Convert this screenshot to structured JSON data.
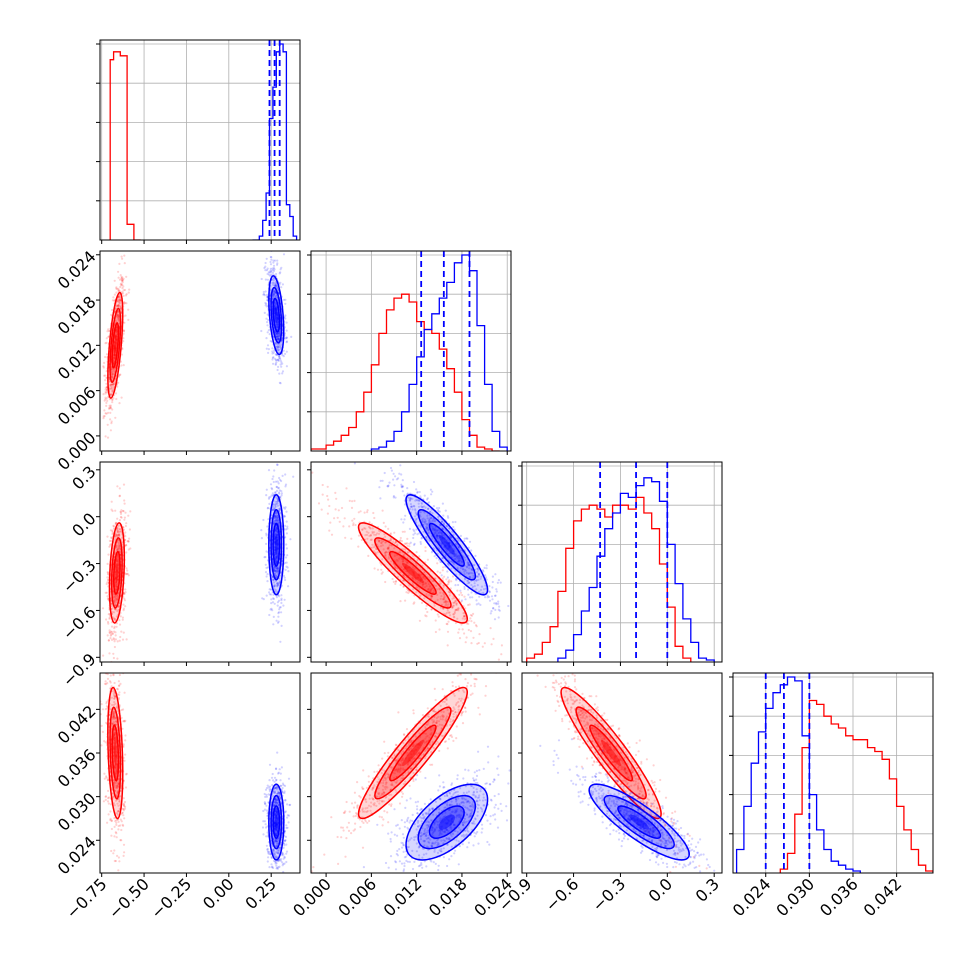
{
  "chart_data": {
    "type": "corner",
    "series_colors": [
      "#ff0000",
      "#0000ff"
    ],
    "parameters": [
      {
        "id": "p1",
        "range": [
          -0.76,
          0.42
        ],
        "ticks": [
          {
            "v": -0.75,
            "label": "−0.75"
          },
          {
            "v": -0.5,
            "label": "−0.50"
          },
          {
            "v": -0.25,
            "label": "−0.25"
          },
          {
            "v": 0.0,
            "label": "0.00"
          },
          {
            "v": 0.25,
            "label": "0.25"
          }
        ]
      },
      {
        "id": "p2",
        "range": [
          -0.002,
          0.0245
        ],
        "ticks": [
          {
            "v": 0.0,
            "label": "0.000"
          },
          {
            "v": 0.006,
            "label": "0.006"
          },
          {
            "v": 0.012,
            "label": "0.012"
          },
          {
            "v": 0.018,
            "label": "0.018"
          },
          {
            "v": 0.024,
            "label": "0.024"
          }
        ]
      },
      {
        "id": "p3",
        "range": [
          -0.93,
          0.35
        ],
        "ticks": [
          {
            "v": -0.9,
            "label": "−0.9"
          },
          {
            "v": -0.6,
            "label": "−0.6"
          },
          {
            "v": -0.3,
            "label": "−0.3"
          },
          {
            "v": 0.0,
            "label": "0.0"
          },
          {
            "v": 0.3,
            "label": "0.3"
          }
        ]
      },
      {
        "id": "p4",
        "range": [
          0.0195,
          0.047
        ],
        "ticks": [
          {
            "v": 0.024,
            "label": "0.024"
          },
          {
            "v": 0.03,
            "label": "0.030"
          },
          {
            "v": 0.036,
            "label": "0.036"
          },
          {
            "v": 0.042,
            "label": "0.042"
          }
        ]
      }
    ],
    "histograms": [
      {
        "param": 0,
        "ymax": 1.0,
        "series": [
          {
            "color": "#ff0000",
            "edges": [
              -0.7,
              -0.68,
              -0.64,
              -0.6,
              -0.56,
              -0.52
            ],
            "counts": [
              0.92,
              0.96,
              0.94,
              0.08,
              0.0
            ]
          },
          {
            "color": "#0000ff",
            "edges": [
              0.14,
              0.18,
              0.2,
              0.22,
              0.24,
              0.26,
              0.28,
              0.3,
              0.32,
              0.34,
              0.36,
              0.38,
              0.4
            ],
            "counts": [
              0.0,
              0.02,
              0.1,
              0.24,
              0.62,
              0.78,
              0.96,
              1.0,
              0.96,
              0.18,
              0.12,
              0.02
            ]
          }
        ],
        "quantiles": [
          0.24,
          0.27,
          0.3
        ]
      },
      {
        "param": 1,
        "ymax": 1.0,
        "series": [
          {
            "color": "#ff0000",
            "edges": [
              -0.002,
              0.0,
              0.001,
              0.002,
              0.003,
              0.004,
              0.005,
              0.006,
              0.007,
              0.008,
              0.009,
              0.01,
              0.011,
              0.012,
              0.013,
              0.014,
              0.015,
              0.016,
              0.017,
              0.018,
              0.019,
              0.02,
              0.021,
              0.022,
              0.023
            ],
            "counts": [
              0.01,
              0.03,
              0.05,
              0.08,
              0.12,
              0.2,
              0.3,
              0.44,
              0.6,
              0.72,
              0.78,
              0.8,
              0.76,
              0.66,
              0.62,
              0.6,
              0.52,
              0.42,
              0.3,
              0.16,
              0.08,
              0.02,
              0.01,
              0.0
            ]
          },
          {
            "color": "#0000ff",
            "edges": [
              0.006,
              0.007,
              0.008,
              0.009,
              0.01,
              0.011,
              0.012,
              0.013,
              0.014,
              0.015,
              0.016,
              0.017,
              0.018,
              0.019,
              0.02,
              0.021,
              0.022,
              0.023,
              0.024
            ],
            "counts": [
              0.01,
              0.02,
              0.05,
              0.1,
              0.2,
              0.34,
              0.48,
              0.62,
              0.7,
              0.78,
              0.86,
              0.96,
              1.0,
              0.92,
              0.64,
              0.34,
              0.1,
              0.02
            ]
          }
        ],
        "quantiles": [
          0.0126,
          0.0156,
          0.019
        ]
      },
      {
        "param": 2,
        "ymax": 1.0,
        "series": [
          {
            "color": "#ff0000",
            "edges": [
              -0.9,
              -0.85,
              -0.8,
              -0.75,
              -0.7,
              -0.65,
              -0.6,
              -0.55,
              -0.5,
              -0.45,
              -0.4,
              -0.35,
              -0.3,
              -0.25,
              -0.2,
              -0.15,
              -0.1,
              -0.05,
              0.0,
              0.05,
              0.1,
              0.15
            ],
            "counts": [
              0.02,
              0.04,
              0.1,
              0.18,
              0.36,
              0.58,
              0.72,
              0.78,
              0.8,
              0.78,
              0.74,
              0.8,
              0.8,
              0.78,
              0.84,
              0.76,
              0.68,
              0.5,
              0.28,
              0.08,
              0.02
            ]
          },
          {
            "color": "#0000ff",
            "edges": [
              -0.7,
              -0.65,
              -0.6,
              -0.55,
              -0.5,
              -0.45,
              -0.4,
              -0.35,
              -0.3,
              -0.25,
              -0.2,
              -0.15,
              -0.1,
              -0.05,
              0.0,
              0.05,
              0.1,
              0.15,
              0.2,
              0.25,
              0.3
            ],
            "counts": [
              0.02,
              0.06,
              0.14,
              0.26,
              0.38,
              0.54,
              0.68,
              0.76,
              0.86,
              0.84,
              0.9,
              0.94,
              0.92,
              0.82,
              0.6,
              0.4,
              0.22,
              0.1,
              0.02,
              0.01
            ]
          }
        ],
        "quantiles": [
          -0.43,
          -0.2,
          0.0
        ]
      },
      {
        "param": 3,
        "ymax": 1.0,
        "series": [
          {
            "color": "#0000ff",
            "edges": [
              0.02,
              0.021,
              0.022,
              0.023,
              0.024,
              0.025,
              0.026,
              0.027,
              0.028,
              0.029,
              0.03,
              0.031,
              0.032,
              0.033,
              0.034,
              0.035,
              0.036,
              0.037
            ],
            "counts": [
              0.12,
              0.34,
              0.56,
              0.72,
              0.84,
              0.92,
              0.96,
              1.0,
              0.98,
              0.7,
              0.4,
              0.22,
              0.12,
              0.06,
              0.04,
              0.02,
              0.01
            ]
          },
          {
            "color": "#ff0000",
            "edges": [
              0.026,
              0.027,
              0.028,
              0.029,
              0.03,
              0.031,
              0.032,
              0.033,
              0.034,
              0.035,
              0.036,
              0.037,
              0.038,
              0.039,
              0.04,
              0.041,
              0.042,
              0.043,
              0.044,
              0.045,
              0.046,
              0.047
            ],
            "counts": [
              0.02,
              0.1,
              0.3,
              0.64,
              0.88,
              0.86,
              0.8,
              0.76,
              0.74,
              0.7,
              0.68,
              0.68,
              0.64,
              0.62,
              0.58,
              0.48,
              0.34,
              0.22,
              0.12,
              0.04,
              0.01
            ]
          }
        ],
        "quantiles": [
          0.024,
          0.0265,
          0.03
        ]
      }
    ],
    "scatter_panels": [
      {
        "x": 0,
        "y": 1,
        "clusters": [
          {
            "color": "#ff0000",
            "mean": [
              -0.67,
              0.012
            ],
            "sd": [
              0.022,
              0.0035
            ],
            "rho": 0.6
          },
          {
            "color": "#0000ff",
            "mean": [
              0.28,
              0.016
            ],
            "sd": [
              0.022,
              0.0026
            ],
            "rho": -0.4
          }
        ]
      },
      {
        "x": 0,
        "y": 2,
        "clusters": [
          {
            "color": "#ff0000",
            "mean": [
              -0.66,
              -0.36
            ],
            "sd": [
              0.022,
              0.16
            ],
            "rho": 0.3
          },
          {
            "color": "#0000ff",
            "mean": [
              0.28,
              -0.18
            ],
            "sd": [
              0.022,
              0.16
            ],
            "rho": 0.0
          }
        ]
      },
      {
        "x": 1,
        "y": 2,
        "clusters": [
          {
            "color": "#ff0000",
            "mean": [
              0.0115,
              -0.36
            ],
            "sd": [
              0.0036,
              0.16
            ],
            "rho": -0.92
          },
          {
            "color": "#0000ff",
            "mean": [
              0.016,
              -0.18
            ],
            "sd": [
              0.0027,
              0.16
            ],
            "rho": -0.9
          }
        ]
      },
      {
        "x": 0,
        "y": 3,
        "clusters": [
          {
            "color": "#ff0000",
            "mean": [
              -0.67,
              0.036
            ],
            "sd": [
              0.022,
              0.0045
            ],
            "rho": -0.3
          },
          {
            "color": "#0000ff",
            "mean": [
              0.28,
              0.0265
            ],
            "sd": [
              0.022,
              0.0026
            ],
            "rho": 0.0
          }
        ]
      },
      {
        "x": 1,
        "y": 3,
        "clusters": [
          {
            "color": "#ff0000",
            "mean": [
              0.0115,
              0.036
            ],
            "sd": [
              0.0036,
              0.0045
            ],
            "rho": 0.93
          },
          {
            "color": "#0000ff",
            "mean": [
              0.016,
              0.0265
            ],
            "sd": [
              0.0027,
              0.0026
            ],
            "rho": 0.6
          }
        ]
      },
      {
        "x": 2,
        "y": 3,
        "clusters": [
          {
            "color": "#ff0000",
            "mean": [
              -0.36,
              0.036
            ],
            "sd": [
              0.16,
              0.0045
            ],
            "rho": -0.93
          },
          {
            "color": "#0000ff",
            "mean": [
              -0.18,
              0.0265
            ],
            "sd": [
              0.16,
              0.0026
            ],
            "rho": -0.85
          }
        ]
      }
    ]
  }
}
